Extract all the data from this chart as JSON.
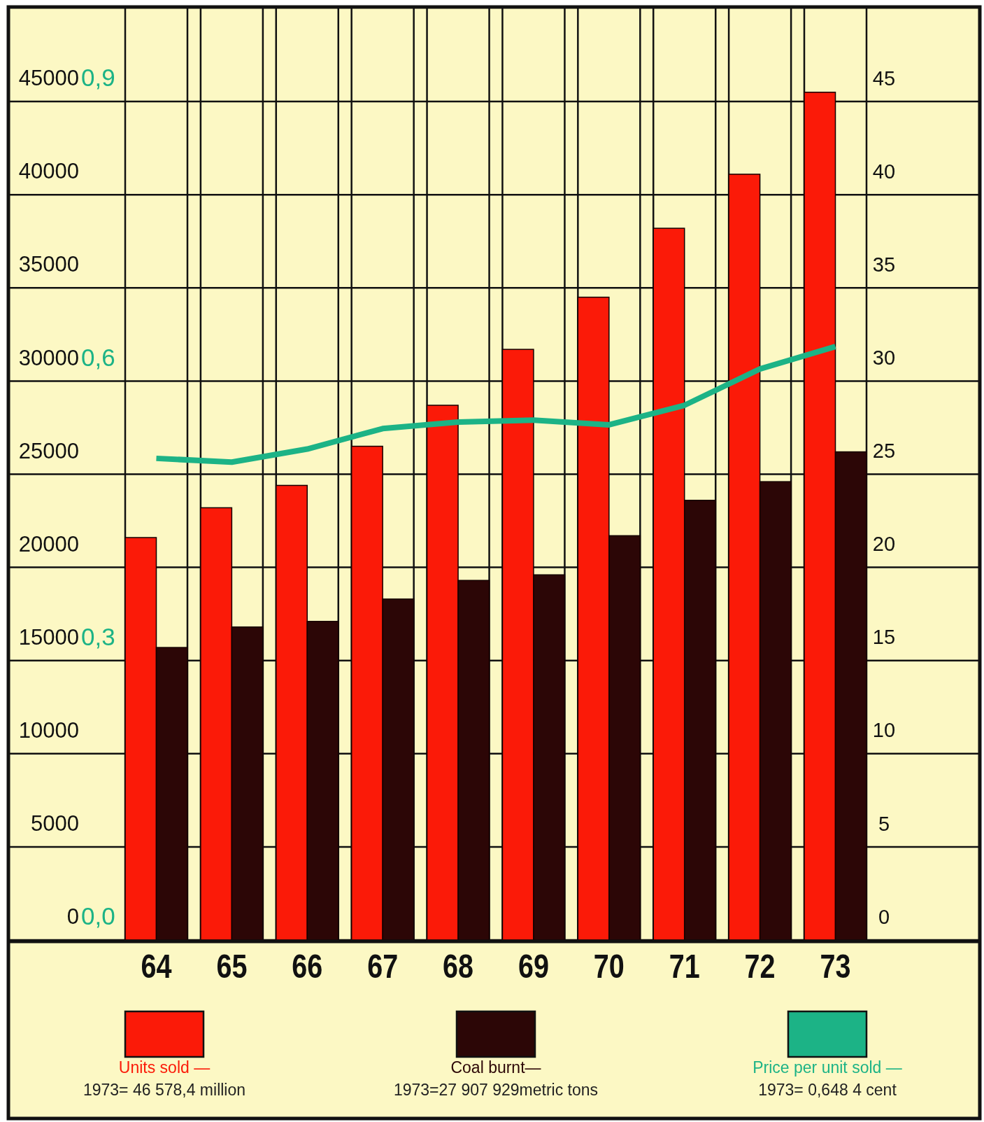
{
  "chart_data": {
    "type": "bar",
    "categories": [
      "64",
      "65",
      "66",
      "67",
      "68",
      "69",
      "70",
      "71",
      "72",
      "73"
    ],
    "series": [
      {
        "name": "Units sold —",
        "color": "#fb1a08",
        "values": [
          21600,
          23200,
          24400,
          26500,
          28700,
          31700,
          34500,
          38200,
          41100,
          45500
        ]
      },
      {
        "name": "Coal burnt—",
        "color": "#2c0606",
        "axis": "y2",
        "values": [
          15.7,
          16.8,
          17.1,
          18.3,
          19.3,
          19.6,
          21.7,
          23.6,
          24.6,
          26.2
        ]
      },
      {
        "name": "Price per unit sold —",
        "type": "line",
        "color": "#1cb386",
        "axis": "y3",
        "values": [
          0.517,
          0.513,
          0.527,
          0.549,
          0.556,
          0.558,
          0.553,
          0.574,
          0.613,
          0.637
        ]
      }
    ],
    "ylim": [
      0,
      50000
    ],
    "yticks": [
      0,
      5000,
      10000,
      15000,
      20000,
      25000,
      30000,
      35000,
      40000,
      45000
    ],
    "y2lim": [
      0,
      50
    ],
    "y2ticks": [
      0,
      5,
      10,
      15,
      20,
      25,
      30,
      35,
      40,
      45
    ],
    "y3lim": [
      0,
      1
    ],
    "y3ticks": [
      {
        "value": 0,
        "label": "0,0"
      },
      {
        "value": 0.3,
        "label": "0,3"
      },
      {
        "value": 0.6,
        "label": "0,6"
      },
      {
        "value": 0.9,
        "label": "0,9"
      }
    ],
    "grid": true,
    "legend": "bottom",
    "annotations": [
      "1973= 46 578,4 million",
      "1973=27 907 929metric tons",
      "1973= 0,648 4 cent"
    ]
  }
}
